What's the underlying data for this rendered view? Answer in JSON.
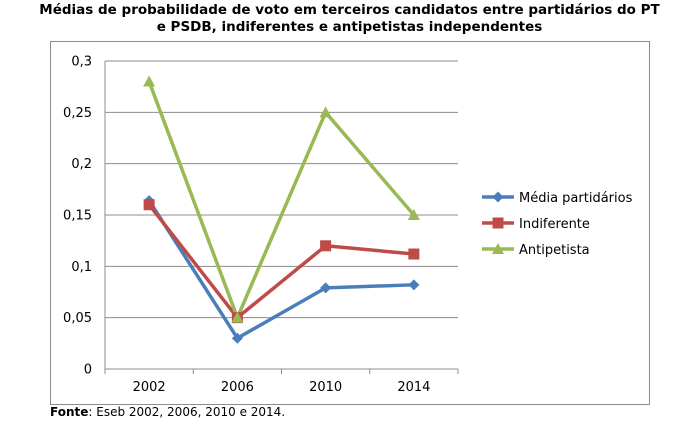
{
  "title_lines": [
    "Médias de probabilidade de voto em terceiros candidatos entre partidários do PT",
    "e PSDB, indiferentes e antipetistas independentes"
  ],
  "source": {
    "label": "Fonte",
    "text": ": Eseb 2002, 2006, 2010 e 2014."
  },
  "chart_data": {
    "type": "line",
    "title": "Médias de probabilidade de voto em terceiros candidatos entre partidários do PT e PSDB, indiferentes e antipetistas independentes",
    "categories": [
      "2002",
      "2006",
      "2010",
      "2014"
    ],
    "ylim": [
      0,
      0.3
    ],
    "yticks": [
      "0",
      "0,05",
      "0,1",
      "0,15",
      "0,2",
      "0,25",
      "0,3"
    ],
    "grid": true,
    "legend": "right",
    "series": [
      {
        "name": "Média partidários",
        "values": [
          0.164,
          0.03,
          0.079,
          0.082
        ],
        "color": "#4a7ebb",
        "marker": "diamond"
      },
      {
        "name": "Indiferente",
        "values": [
          0.16,
          0.05,
          0.12,
          0.112
        ],
        "color": "#be4b48",
        "marker": "square"
      },
      {
        "name": "Antipetista",
        "values": [
          0.28,
          0.05,
          0.25,
          0.15
        ],
        "color": "#98b954",
        "marker": "triangle"
      }
    ]
  }
}
